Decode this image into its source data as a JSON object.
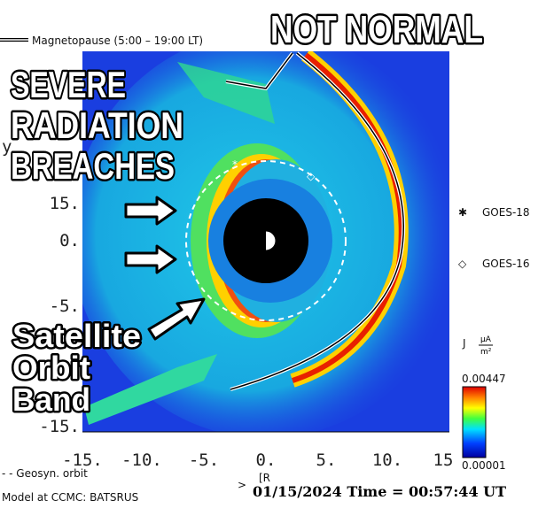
{
  "legend": {
    "magnetopause": "Magnetopause (5:00 – 19:00 LT)",
    "geosync": "- - Geosyn. orbit"
  },
  "axes": {
    "y_label": "y",
    "x_label": "[R",
    "x_ticks": [
      "-15.",
      "-10.",
      "-5.",
      "0.",
      "5.",
      "10.",
      "15"
    ],
    "y_ticks": [
      "15.",
      "0.",
      "-5.",
      "-15."
    ]
  },
  "satellites": [
    {
      "marker": "✱",
      "name": "GOES-18"
    },
    {
      "marker": "◇",
      "name": "GOES-16"
    }
  ],
  "colorbar": {
    "label": "J",
    "unit_top": "μA",
    "unit_bottom": "m²",
    "max": "0.00447",
    "min": "0.00001"
  },
  "footer": {
    "model": "Model at CCMC: BATSRUS",
    "time": "01/15/2024 Time = 00:57:44 UT",
    "mark": ">"
  },
  "overlays": {
    "top": "NOT NORMAL",
    "left": [
      "SEVERE",
      "RADIATION",
      "BREACHES"
    ],
    "bottom": [
      "Satellite",
      "Orbit",
      "Band"
    ]
  }
}
